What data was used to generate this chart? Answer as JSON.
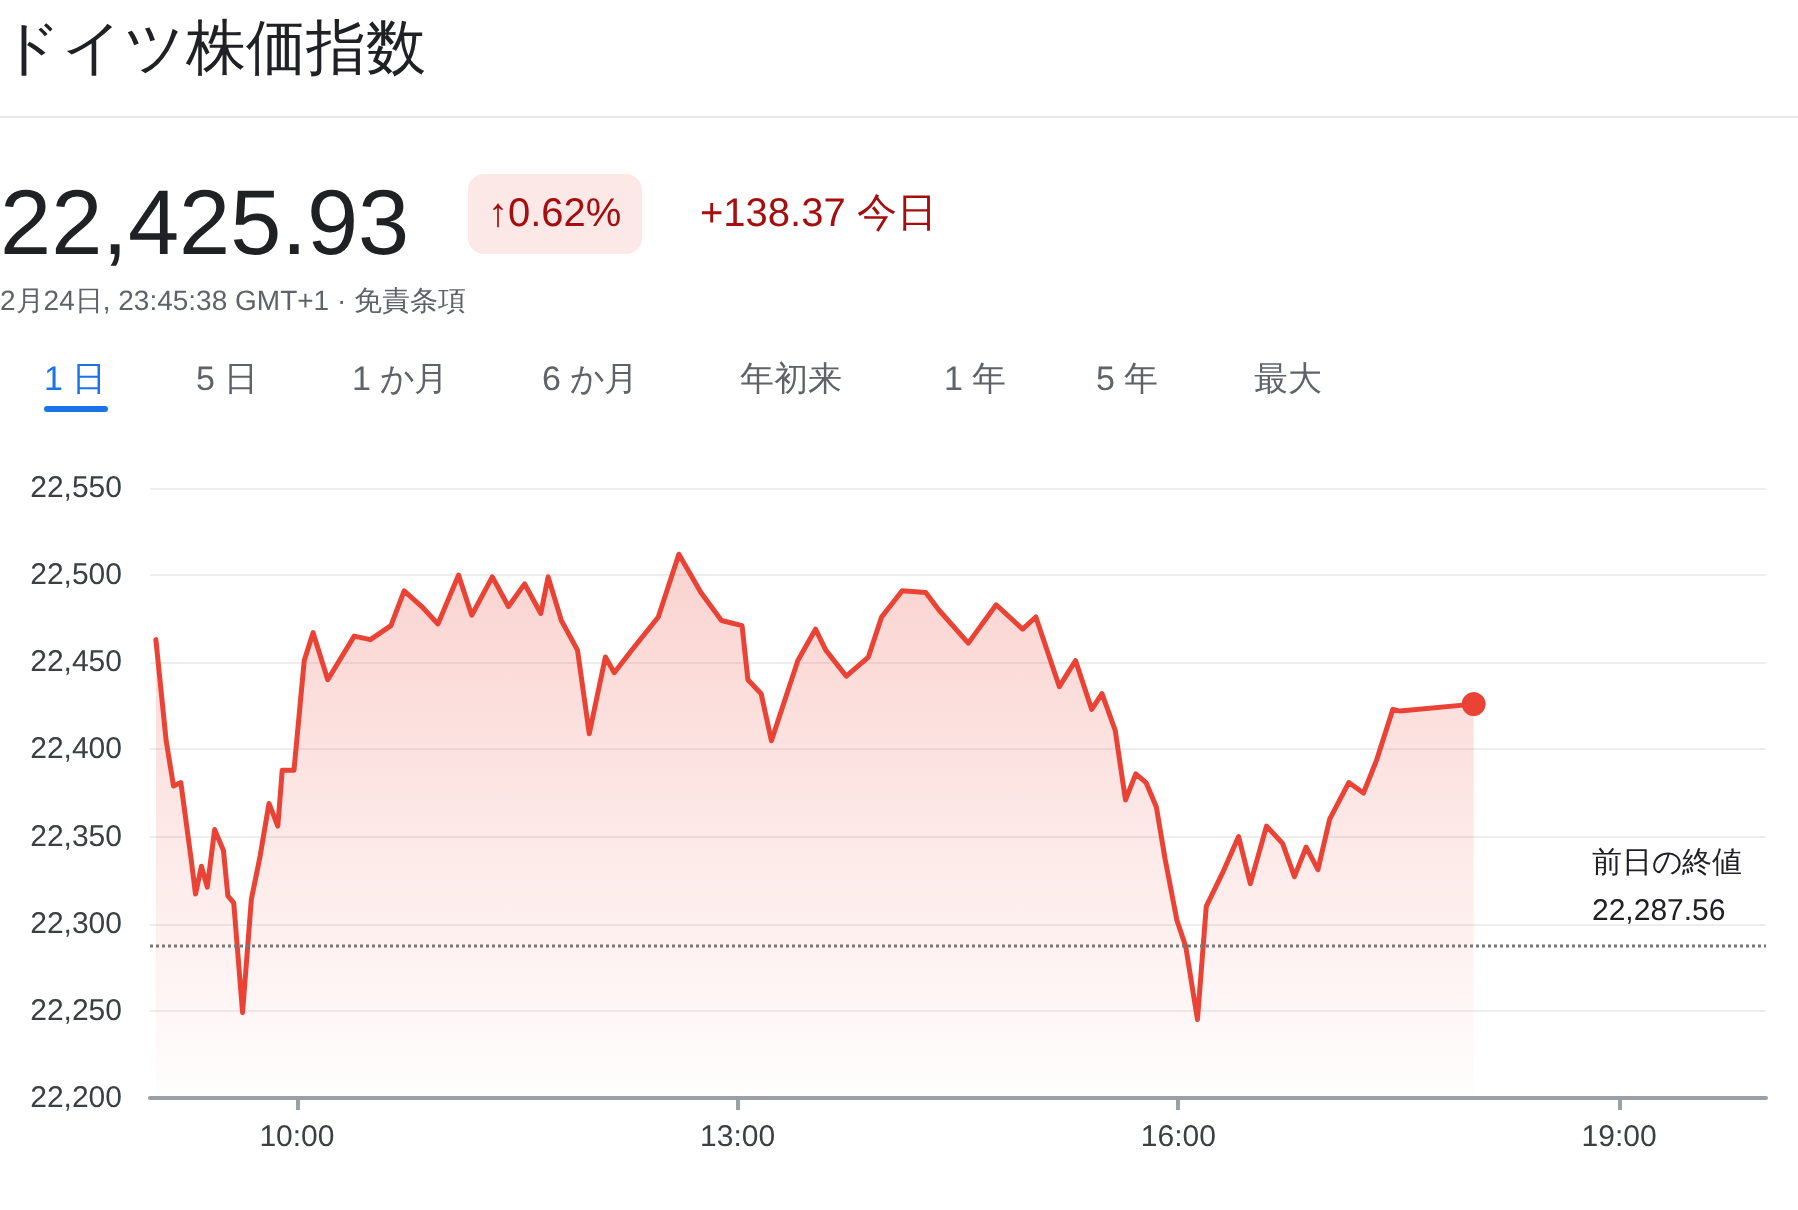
{
  "chart_data": {
    "type": "area",
    "title": "ドイツ株価指数",
    "annotations": [
      "22,425.93",
      "↑0.62%",
      "+138.37 今日",
      "2月24日, 23:45:38 GMT+1 · 免責条項",
      "1 日",
      "5 日",
      "1 か月",
      "6 か月",
      "年初来",
      "1 年",
      "5 年",
      "最大"
    ],
    "x": [
      9.04,
      9.11,
      9.16,
      9.21,
      9.28,
      9.31,
      9.35,
      9.39,
      9.44,
      9.5,
      9.53,
      9.57,
      9.63,
      9.69,
      9.75,
      9.81,
      9.87,
      9.9,
      9.98,
      10.05,
      10.11,
      10.21,
      10.39,
      10.5,
      10.64,
      10.73,
      10.85,
      10.96,
      11.1,
      11.19,
      11.33,
      11.44,
      11.55,
      11.66,
      11.71,
      11.8,
      11.91,
      11.99,
      12.1,
      12.16,
      12.28,
      12.46,
      12.6,
      12.75,
      12.89,
      13.03,
      13.07,
      13.16,
      13.23,
      13.41,
      13.53,
      13.6,
      13.74,
      13.89,
      13.98,
      14.12,
      14.28,
      14.37,
      14.57,
      14.76,
      14.94,
      15.03,
      15.19,
      15.3,
      15.41,
      15.48,
      15.57,
      15.64,
      15.71,
      15.78,
      15.85,
      15.91,
      15.99,
      16.05,
      16.13,
      16.19,
      16.3,
      16.41,
      16.49,
      16.6,
      16.71,
      16.79,
      16.87,
      16.95,
      17.03,
      17.16,
      17.26,
      17.35,
      17.46,
      17.51,
      18.01
    ],
    "series": [
      {
        "color": "#ea4335",
        "values": [
          22463,
          22405,
          22379,
          22381,
          22337,
          22317,
          22333,
          22321,
          22354,
          22342,
          22316,
          22312,
          22249,
          22314,
          22339,
          22369,
          22356,
          22388,
          22388,
          22451,
          22467,
          22440,
          22465,
          22463,
          22471,
          22491,
          22482,
          22472,
          22500,
          22477,
          22499,
          22482,
          22495,
          22478,
          22499,
          22474,
          22457,
          22409,
          22453,
          22444,
          22457,
          22476,
          22512,
          22490,
          22474,
          22471,
          22440,
          22432,
          22405,
          22451,
          22469,
          22457,
          22442,
          22453,
          22476,
          22491,
          22490,
          22480,
          22461,
          22483,
          22469,
          22476,
          22436,
          22451,
          22423,
          22432,
          22411,
          22371,
          22386,
          22381,
          22367,
          22337,
          22302,
          22287,
          22245,
          22310,
          22329,
          22350,
          22323,
          22356,
          22346,
          22327,
          22344,
          22331,
          22360,
          22381,
          22375,
          22394,
          22423,
          22422,
          22426
        ]
      }
    ],
    "xlim": [
      9,
      20
    ],
    "xticks": [
      {
        "value": 10,
        "label": "10:00"
      },
      {
        "value": 13,
        "label": "13:00"
      },
      {
        "value": 16,
        "label": "16:00"
      },
      {
        "value": 19,
        "label": "19:00"
      }
    ],
    "ylim": [
      22200,
      22550
    ],
    "yticks": [
      {
        "value": 22200,
        "label": "22,200"
      },
      {
        "value": 22250,
        "label": "22,250"
      },
      {
        "value": 22300,
        "label": "22,300"
      },
      {
        "value": 22350,
        "label": "22,350"
      },
      {
        "value": 22400,
        "label": "22,400"
      },
      {
        "value": 22450,
        "label": "22,450"
      },
      {
        "value": 22500,
        "label": "22,500"
      },
      {
        "value": 22550,
        "label": "22,550"
      }
    ],
    "ref_lines": [
      {
        "axis": "y",
        "value": 22287.56,
        "label": "前日の終値 22,287.56",
        "line_style": "dotted",
        "color": "#777777"
      }
    ],
    "grid": "y",
    "marker": "none",
    "line_style": "solid"
  }
}
